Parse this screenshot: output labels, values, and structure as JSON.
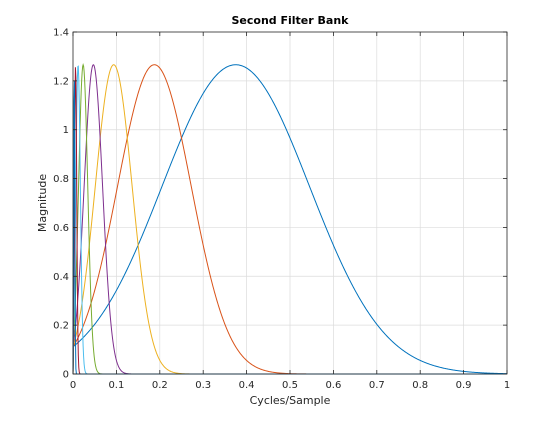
{
  "chart_data": {
    "type": "line",
    "title": "Second Filter Bank",
    "xlabel": "Cycles/Sample",
    "ylabel": "Magnitude",
    "xlim": [
      0,
      1
    ],
    "ylim": [
      0,
      1.4
    ],
    "grid": true,
    "legend": "none",
    "xticks": [
      0,
      0.1,
      0.2,
      0.3,
      0.4,
      0.5,
      0.6,
      0.7,
      0.8,
      0.9,
      1
    ],
    "xtick_labels": [
      "0",
      "0.1",
      "0.2",
      "0.3",
      "0.4",
      "0.5",
      "0.6",
      "0.7",
      "0.8",
      "0.9",
      "1"
    ],
    "yticks": [
      0,
      0.2,
      0.4,
      0.6,
      0.8,
      1,
      1.2,
      1.4
    ],
    "ytick_labels": [
      "0",
      "0.2",
      "0.4",
      "0.6",
      "0.8",
      "1",
      "1.2",
      "1.4"
    ],
    "peak_magnitude": 1.266,
    "series": [
      {
        "color": "#0072BD",
        "center_frequency": 0.375
      },
      {
        "color": "#D95319",
        "center_frequency": 0.1875
      },
      {
        "color": "#EDB120",
        "center_frequency": 0.0938
      },
      {
        "color": "#7E2F8E",
        "center_frequency": 0.0469
      },
      {
        "color": "#77AC30",
        "center_frequency": 0.0234
      },
      {
        "color": "#4DBEEE",
        "center_frequency": 0.0117
      },
      {
        "color": "#A2142F",
        "center_frequency": 0.0059
      },
      {
        "color": "#0072BD",
        "center_frequency": 0.0029
      }
    ]
  }
}
